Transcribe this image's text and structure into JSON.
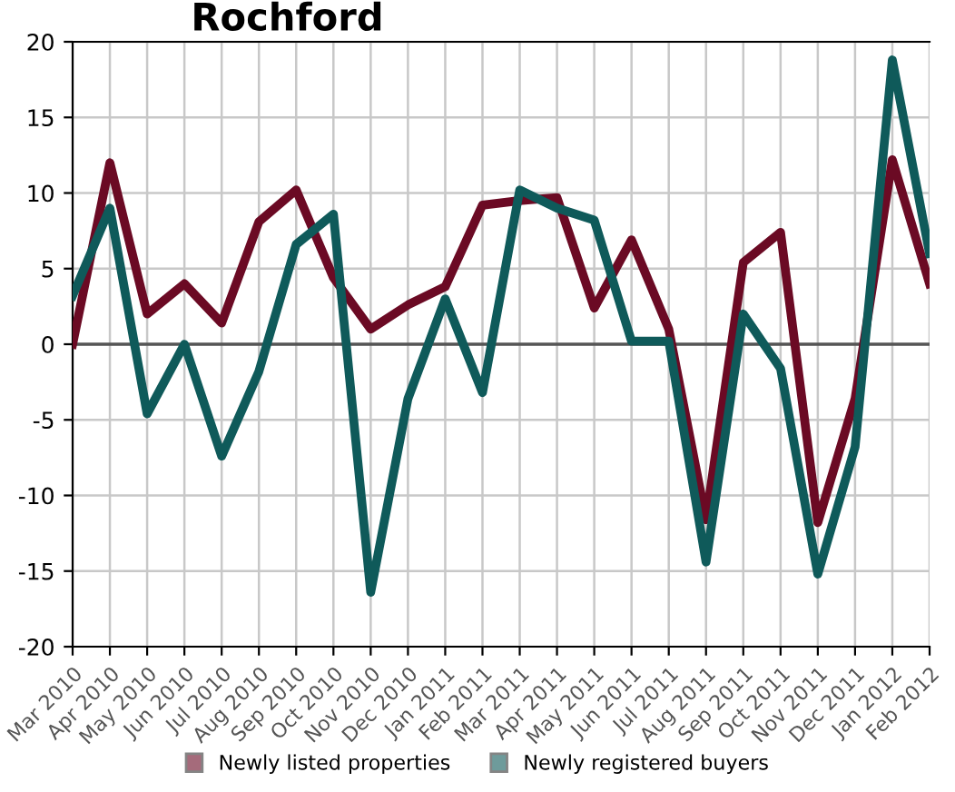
{
  "chart_data": {
    "type": "line",
    "title": "Rochford",
    "categories": [
      "Mar 2010",
      "Apr 2010",
      "May 2010",
      "Jun 2010",
      "Jul 2010",
      "Aug 2010",
      "Sep 2010",
      "Oct 2010",
      "Nov 2010",
      "Dec 2010",
      "Jan 2011",
      "Feb 2011",
      "Mar 2011",
      "Apr 2011",
      "May 2011",
      "Jun 2011",
      "Jul 2011",
      "Aug 2011",
      "Sep 2011",
      "Oct 2011",
      "Nov 2011",
      "Dec 2011",
      "Jan 2012",
      "Feb 2012"
    ],
    "series": [
      {
        "name": "Newly listed properties",
        "color": "#6b0a24",
        "values": [
          0,
          12,
          2,
          4,
          1.4,
          8.1,
          10.2,
          4.4,
          1,
          2.6,
          3.8,
          9.2,
          9.5,
          9.7,
          2.4,
          6.9,
          1,
          -11.6,
          5.4,
          7.4,
          -11.8,
          -3.6,
          12.2,
          4
        ]
      },
      {
        "name": "Newly registered buyers",
        "color": "#0f5a5a",
        "values": [
          3.2,
          9,
          -4.6,
          0,
          -7.4,
          -1.8,
          6.6,
          8.6,
          -16.4,
          -3.6,
          3,
          -3.2,
          10.2,
          9,
          8.2,
          0.2,
          0.2,
          -14.4,
          2,
          -1.6,
          -15.2,
          -6.8,
          18.8,
          6
        ]
      }
    ],
    "ylim": [
      -20,
      20
    ],
    "yticks": [
      -20,
      -15,
      -10,
      -5,
      0,
      5,
      10,
      15,
      20
    ],
    "ref_lines": [
      {
        "axis": "y",
        "value": 0,
        "color": "#555555"
      }
    ],
    "grid": true,
    "legend": "bottom",
    "marker": "none",
    "line_style": "solid"
  }
}
